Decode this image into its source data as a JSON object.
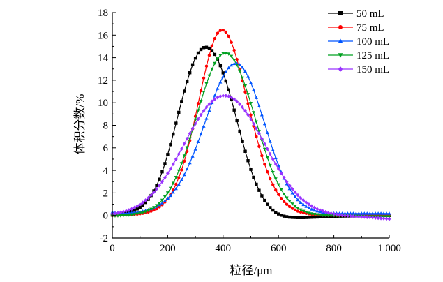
{
  "chart_data": {
    "type": "line",
    "xlabel": "粒径/μm",
    "ylabel": "体积分数/%",
    "xlim": [
      0,
      1000
    ],
    "ylim": [
      -2,
      18
    ],
    "x_ticks": [
      0,
      200,
      400,
      600,
      800,
      1000
    ],
    "x_tick_labels": [
      "0",
      "200",
      "400",
      "600",
      "800",
      "1 000"
    ],
    "y_ticks": [
      -2,
      0,
      2,
      4,
      6,
      8,
      10,
      12,
      14,
      16,
      18
    ],
    "y_tick_labels": [
      "-2",
      "0",
      "2",
      "4",
      "6",
      "8",
      "10",
      "12",
      "14",
      "16",
      "18"
    ],
    "grid": false,
    "legend_position": "top-right",
    "series": [
      {
        "name": "50 mL",
        "color": "#000000",
        "marker": "square",
        "x": [
          0,
          10,
          20,
          30,
          40,
          50,
          60,
          70,
          80,
          90,
          100,
          110,
          120,
          130,
          140,
          150,
          160,
          170,
          180,
          190,
          200,
          210,
          220,
          230,
          240,
          250,
          260,
          270,
          280,
          290,
          300,
          310,
          320,
          330,
          340,
          350,
          360,
          370,
          380,
          390,
          400,
          410,
          420,
          430,
          440,
          450,
          460,
          470,
          480,
          490,
          500,
          510,
          520,
          530,
          540,
          550,
          560,
          570,
          580,
          590,
          600,
          610,
          620,
          630,
          640,
          650,
          660,
          670,
          680,
          690,
          700,
          710,
          720,
          730,
          740,
          750,
          760,
          770,
          780,
          790,
          800,
          810,
          820,
          830,
          840,
          850,
          860,
          870,
          880,
          890,
          900,
          910,
          920,
          930,
          940,
          950,
          960,
          970,
          980,
          990,
          1000
        ],
        "y": [
          0.03,
          0.05,
          0.08,
          0.11,
          0.15,
          0.2,
          0.27,
          0.35,
          0.45,
          0.58,
          0.73,
          0.92,
          1.15,
          1.43,
          1.77,
          2.18,
          2.66,
          3.22,
          3.87,
          4.6,
          5.41,
          6.28,
          7.22,
          8.18,
          9.15,
          10.11,
          11.03,
          11.88,
          12.66,
          13.37,
          13.96,
          14.41,
          14.72,
          14.89,
          14.92,
          14.84,
          14.63,
          14.29,
          13.83,
          13.29,
          12.65,
          11.93,
          11.14,
          10.27,
          9.35,
          8.41,
          7.47,
          6.56,
          5.69,
          4.86,
          4.09,
          3.39,
          2.77,
          2.23,
          1.75,
          1.34,
          0.99,
          0.7,
          0.47,
          0.28,
          0.13,
          0.02,
          -0.06,
          -0.11,
          -0.15,
          -0.17,
          -0.18,
          -0.19,
          -0.19,
          -0.19,
          -0.18,
          -0.17,
          -0.16,
          -0.15,
          -0.14,
          -0.13,
          -0.12,
          -0.11,
          -0.1,
          -0.09,
          -0.08,
          -0.07,
          -0.06,
          -0.06,
          -0.05,
          -0.05,
          -0.04,
          -0.04,
          -0.03,
          -0.03,
          -0.03,
          -0.02,
          -0.02,
          -0.02,
          -0.02,
          -0.02,
          -0.01,
          -0.01,
          -0.01,
          -0.01,
          -0.01
        ]
      },
      {
        "name": "75 mL",
        "color": "#ff0000",
        "marker": "circle",
        "x": [
          0,
          10,
          20,
          30,
          40,
          50,
          60,
          70,
          80,
          90,
          100,
          110,
          120,
          130,
          140,
          150,
          160,
          170,
          180,
          190,
          200,
          210,
          220,
          230,
          240,
          250,
          260,
          270,
          280,
          290,
          300,
          310,
          320,
          330,
          340,
          350,
          360,
          370,
          380,
          390,
          400,
          410,
          420,
          430,
          440,
          450,
          460,
          470,
          480,
          490,
          500,
          510,
          520,
          530,
          540,
          550,
          560,
          570,
          580,
          590,
          600,
          610,
          620,
          630,
          640,
          650,
          660,
          670,
          680,
          690,
          700,
          710,
          720,
          730,
          740,
          750,
          760,
          770,
          780,
          790,
          800,
          810,
          820,
          830,
          840,
          850,
          860,
          870,
          880,
          890,
          900,
          910,
          920,
          930,
          940,
          950,
          960,
          970,
          980,
          990,
          1000
        ],
        "y": [
          0.0,
          0.01,
          0.02,
          0.03,
          0.04,
          0.05,
          0.06,
          0.08,
          0.1,
          0.12,
          0.15,
          0.19,
          0.24,
          0.3,
          0.38,
          0.48,
          0.6,
          0.76,
          0.95,
          1.19,
          1.48,
          1.84,
          2.26,
          2.77,
          3.36,
          4.04,
          4.82,
          5.69,
          6.65,
          7.69,
          8.79,
          9.93,
          11.07,
          12.19,
          13.25,
          14.21,
          15.04,
          15.7,
          16.16,
          16.41,
          16.44,
          16.27,
          15.9,
          15.35,
          14.66,
          13.84,
          12.93,
          11.96,
          10.95,
          9.93,
          8.92,
          7.94,
          7.0,
          6.12,
          5.3,
          4.55,
          3.87,
          3.26,
          2.73,
          2.26,
          1.86,
          1.52,
          1.23,
          0.99,
          0.79,
          0.62,
          0.49,
          0.38,
          0.3,
          0.23,
          0.18,
          0.14,
          0.11,
          0.08,
          0.06,
          0.05,
          0.04,
          0.03,
          0.02,
          0.02,
          0.01,
          0.01,
          0.01,
          0.01,
          0.0,
          0.0,
          0.0,
          0.0,
          0.0,
          0.0,
          0.0,
          0.0,
          0.0,
          0.0,
          0.0,
          0.0,
          0.0,
          0.0,
          0.0,
          0.0,
          0.0
        ]
      },
      {
        "name": "100 mL",
        "color": "#0055ff",
        "marker": "triangle-up",
        "x": [
          0,
          10,
          20,
          30,
          40,
          50,
          60,
          70,
          80,
          90,
          100,
          110,
          120,
          130,
          140,
          150,
          160,
          170,
          180,
          190,
          200,
          210,
          220,
          230,
          240,
          250,
          260,
          270,
          280,
          290,
          300,
          310,
          320,
          330,
          340,
          350,
          360,
          370,
          380,
          390,
          400,
          410,
          420,
          430,
          440,
          450,
          460,
          470,
          480,
          490,
          500,
          510,
          520,
          530,
          540,
          550,
          560,
          570,
          580,
          590,
          600,
          610,
          620,
          630,
          640,
          650,
          660,
          670,
          680,
          690,
          700,
          710,
          720,
          730,
          740,
          750,
          760,
          770,
          780,
          790,
          800,
          810,
          820,
          830,
          840,
          850,
          860,
          870,
          880,
          890,
          900,
          910,
          920,
          930,
          940,
          950,
          960,
          970,
          980,
          990,
          1000
        ],
        "y": [
          0.3,
          0.25,
          0.22,
          0.2,
          0.19,
          0.2,
          0.21,
          0.23,
          0.26,
          0.29,
          0.33,
          0.38,
          0.44,
          0.51,
          0.59,
          0.69,
          0.81,
          0.95,
          1.11,
          1.3,
          1.52,
          1.77,
          2.06,
          2.38,
          2.75,
          3.16,
          3.62,
          4.12,
          4.67,
          5.26,
          5.88,
          6.54,
          7.22,
          7.92,
          8.62,
          9.32,
          10.0,
          10.65,
          11.27,
          11.83,
          12.33,
          12.76,
          13.1,
          13.34,
          13.47,
          13.48,
          13.37,
          13.14,
          12.79,
          12.33,
          11.78,
          11.15,
          10.45,
          9.71,
          8.93,
          8.14,
          7.35,
          6.57,
          5.82,
          5.11,
          4.45,
          3.84,
          3.29,
          2.8,
          2.37,
          1.99,
          1.67,
          1.39,
          1.16,
          0.96,
          0.8,
          0.66,
          0.55,
          0.46,
          0.39,
          0.33,
          0.29,
          0.26,
          0.23,
          0.21,
          0.2,
          0.19,
          0.18,
          0.18,
          0.18,
          0.18,
          0.18,
          0.18,
          0.18,
          0.18,
          0.18,
          0.18,
          0.18,
          0.18,
          0.18,
          0.18,
          0.18,
          0.18,
          0.18,
          0.18,
          0.18
        ]
      },
      {
        "name": "125 mL",
        "color": "#00a020",
        "marker": "triangle-down",
        "x": [
          0,
          10,
          20,
          30,
          40,
          50,
          60,
          70,
          80,
          90,
          100,
          110,
          120,
          130,
          140,
          150,
          160,
          170,
          180,
          190,
          200,
          210,
          220,
          230,
          240,
          250,
          260,
          270,
          280,
          290,
          300,
          310,
          320,
          330,
          340,
          350,
          360,
          370,
          380,
          390,
          400,
          410,
          420,
          430,
          440,
          450,
          460,
          470,
          480,
          490,
          500,
          510,
          520,
          530,
          540,
          550,
          560,
          570,
          580,
          590,
          600,
          610,
          620,
          630,
          640,
          650,
          660,
          670,
          680,
          690,
          700,
          710,
          720,
          730,
          740,
          750,
          760,
          770,
          780,
          790,
          800,
          810,
          820,
          830,
          840,
          850,
          860,
          870,
          880,
          890,
          900,
          910,
          920,
          930,
          940,
          950,
          960,
          970,
          980,
          990,
          1000
        ],
        "y": [
          -0.05,
          -0.04,
          -0.03,
          -0.02,
          0.0,
          0.02,
          0.04,
          0.07,
          0.1,
          0.14,
          0.2,
          0.26,
          0.34,
          0.44,
          0.56,
          0.71,
          0.89,
          1.1,
          1.36,
          1.66,
          2.01,
          2.41,
          2.87,
          3.39,
          3.96,
          4.6,
          5.29,
          6.03,
          6.82,
          7.63,
          8.47,
          9.31,
          10.14,
          10.94,
          11.69,
          12.38,
          12.99,
          13.5,
          13.91,
          14.2,
          14.37,
          14.41,
          14.33,
          14.12,
          13.79,
          13.36,
          12.82,
          12.2,
          11.5,
          10.75,
          9.95,
          9.13,
          8.3,
          7.47,
          6.66,
          5.88,
          5.14,
          4.45,
          3.82,
          3.25,
          2.74,
          2.29,
          1.9,
          1.56,
          1.27,
          1.02,
          0.81,
          0.64,
          0.5,
          0.38,
          0.29,
          0.21,
          0.15,
          0.11,
          0.07,
          0.04,
          0.02,
          0.01,
          0.0,
          -0.01,
          -0.02,
          -0.02,
          -0.03,
          -0.03,
          -0.03,
          -0.04,
          -0.04,
          -0.05,
          -0.06,
          -0.07,
          -0.08,
          -0.09,
          -0.1,
          -0.1,
          -0.1,
          -0.1,
          -0.1,
          -0.1,
          -0.1,
          -0.1,
          -0.1
        ]
      },
      {
        "name": "150 mL",
        "color": "#9933ff",
        "marker": "diamond",
        "x": [
          0,
          10,
          20,
          30,
          40,
          50,
          60,
          70,
          80,
          90,
          100,
          110,
          120,
          130,
          140,
          150,
          160,
          170,
          180,
          190,
          200,
          210,
          220,
          230,
          240,
          250,
          260,
          270,
          280,
          290,
          300,
          310,
          320,
          330,
          340,
          350,
          360,
          370,
          380,
          390,
          400,
          410,
          420,
          430,
          440,
          450,
          460,
          470,
          480,
          490,
          500,
          510,
          520,
          530,
          540,
          550,
          560,
          570,
          580,
          590,
          600,
          610,
          620,
          630,
          640,
          650,
          660,
          670,
          680,
          690,
          700,
          710,
          720,
          730,
          740,
          750,
          760,
          770,
          780,
          790,
          800,
          810,
          820,
          830,
          840,
          850,
          860,
          870,
          880,
          890,
          900,
          910,
          920,
          930,
          940,
          950,
          960,
          970,
          980,
          990,
          1000
        ],
        "y": [
          0.15,
          0.18,
          0.22,
          0.27,
          0.33,
          0.4,
          0.48,
          0.58,
          0.7,
          0.83,
          0.98,
          1.15,
          1.35,
          1.56,
          1.8,
          2.06,
          2.35,
          2.66,
          3.0,
          3.36,
          3.74,
          4.14,
          4.56,
          5.0,
          5.45,
          5.9,
          6.36,
          6.82,
          7.27,
          7.71,
          8.14,
          8.55,
          8.93,
          9.28,
          9.6,
          9.88,
          10.12,
          10.32,
          10.47,
          10.57,
          10.62,
          10.62,
          10.57,
          10.47,
          10.32,
          10.12,
          9.88,
          9.6,
          9.28,
          8.93,
          8.55,
          8.14,
          7.71,
          7.27,
          6.82,
          6.36,
          5.9,
          5.45,
          5.0,
          4.56,
          4.14,
          3.74,
          3.36,
          3.0,
          2.66,
          2.35,
          2.06,
          1.8,
          1.56,
          1.35,
          1.15,
          0.98,
          0.83,
          0.7,
          0.58,
          0.48,
          0.39,
          0.31,
          0.24,
          0.18,
          0.13,
          0.09,
          0.05,
          0.02,
          -0.01,
          -0.03,
          -0.05,
          -0.07,
          -0.09,
          -0.1,
          -0.12,
          -0.13,
          -0.15,
          -0.17,
          -0.19,
          -0.21,
          -0.23,
          -0.25,
          -0.27,
          -0.29,
          -0.31
        ]
      }
    ]
  }
}
